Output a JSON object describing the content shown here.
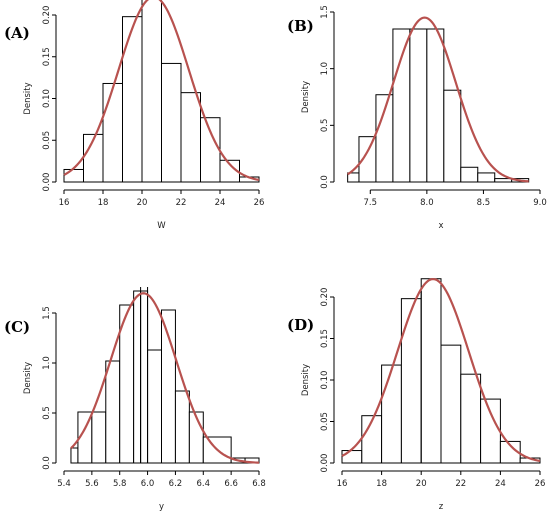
{
  "chart_data": [
    {
      "panel": "(A)",
      "type": "bar",
      "xlabel": "W",
      "ylabel": "Density",
      "xlim": [
        16,
        26
      ],
      "ylim": [
        0,
        0.2
      ],
      "xticks": [
        "16",
        "18",
        "20",
        "22",
        "24",
        "26"
      ],
      "yticks": [
        "0.00",
        "0.05",
        "0.10",
        "0.15",
        "0.20"
      ],
      "bin_edges": [
        16,
        17,
        18,
        19,
        20,
        21,
        22,
        23,
        24,
        25,
        26
      ],
      "values": [
        0.015,
        0.057,
        0.118,
        0.198,
        0.222,
        0.142,
        0.107,
        0.077,
        0.026,
        0.006
      ],
      "curve": {
        "type": "normal",
        "mean": 20.6,
        "sd": 1.8,
        "color": "#b8524f"
      },
      "vlines": [
        20,
        21
      ]
    },
    {
      "panel": "(B)",
      "type": "bar",
      "xlabel": "x",
      "ylabel": "Density",
      "xlim": [
        7.25,
        9.0
      ],
      "ylim": [
        0,
        1.5
      ],
      "xticks": [
        "7.5",
        "8.0",
        "8.5",
        "9.0"
      ],
      "yticks": [
        "0.0",
        "0.5",
        "1.0",
        "1.5"
      ],
      "bin_edges": [
        7.3,
        7.4,
        7.55,
        7.7,
        7.85,
        8.0,
        8.15,
        8.3,
        8.45,
        8.6,
        8.75,
        8.9
      ],
      "values": [
        0.08,
        0.4,
        0.77,
        1.35,
        1.35,
        1.35,
        0.81,
        0.13,
        0.08,
        0.03,
        0.03
      ],
      "curve": {
        "type": "normal",
        "mean": 7.98,
        "sd": 0.275,
        "color": "#b8524f"
      },
      "vlines": []
    },
    {
      "panel": "(C)",
      "type": "bar",
      "xlabel": "y",
      "ylabel": "Density",
      "xlim": [
        5.4,
        6.8
      ],
      "ylim": [
        0,
        1.7
      ],
      "xticks": [
        "5.4",
        "5.6",
        "5.8",
        "6.0",
        "6.2",
        "6.4",
        "6.6",
        "6.8"
      ],
      "yticks": [
        "0.0",
        "0.5",
        "1.0",
        "1.5"
      ],
      "bin_edges": [
        5.45,
        5.5,
        5.6,
        5.7,
        5.8,
        5.9,
        5.95,
        6.0,
        6.1,
        6.2,
        6.3,
        6.4,
        6.6,
        6.7,
        6.8
      ],
      "values": [
        0.15,
        0.51,
        0.51,
        1.02,
        1.58,
        1.72,
        1.72,
        1.13,
        1.53,
        0.72,
        0.51,
        0.26,
        0.05,
        0.05
      ],
      "curve": {
        "type": "normal",
        "mean": 5.97,
        "sd": 0.235,
        "color": "#b8524f"
      },
      "vlines": [
        5.95,
        6.0
      ]
    },
    {
      "panel": "(D)",
      "type": "bar",
      "xlabel": "z",
      "ylabel": "Density",
      "xlim": [
        16,
        26
      ],
      "ylim": [
        0,
        0.2
      ],
      "xticks": [
        "16",
        "18",
        "20",
        "22",
        "24",
        "26"
      ],
      "yticks": [
        "0.00",
        "0.05",
        "0.10",
        "0.15",
        "0.20"
      ],
      "bin_edges": [
        16,
        17,
        18,
        19,
        20,
        21,
        22,
        23,
        24,
        25,
        26
      ],
      "values": [
        0.015,
        0.057,
        0.118,
        0.198,
        0.222,
        0.142,
        0.107,
        0.077,
        0.026,
        0.006
      ],
      "curve": {
        "type": "normal",
        "mean": 20.6,
        "sd": 1.8,
        "color": "#b8524f"
      },
      "vlines": [
        20,
        21
      ]
    }
  ]
}
